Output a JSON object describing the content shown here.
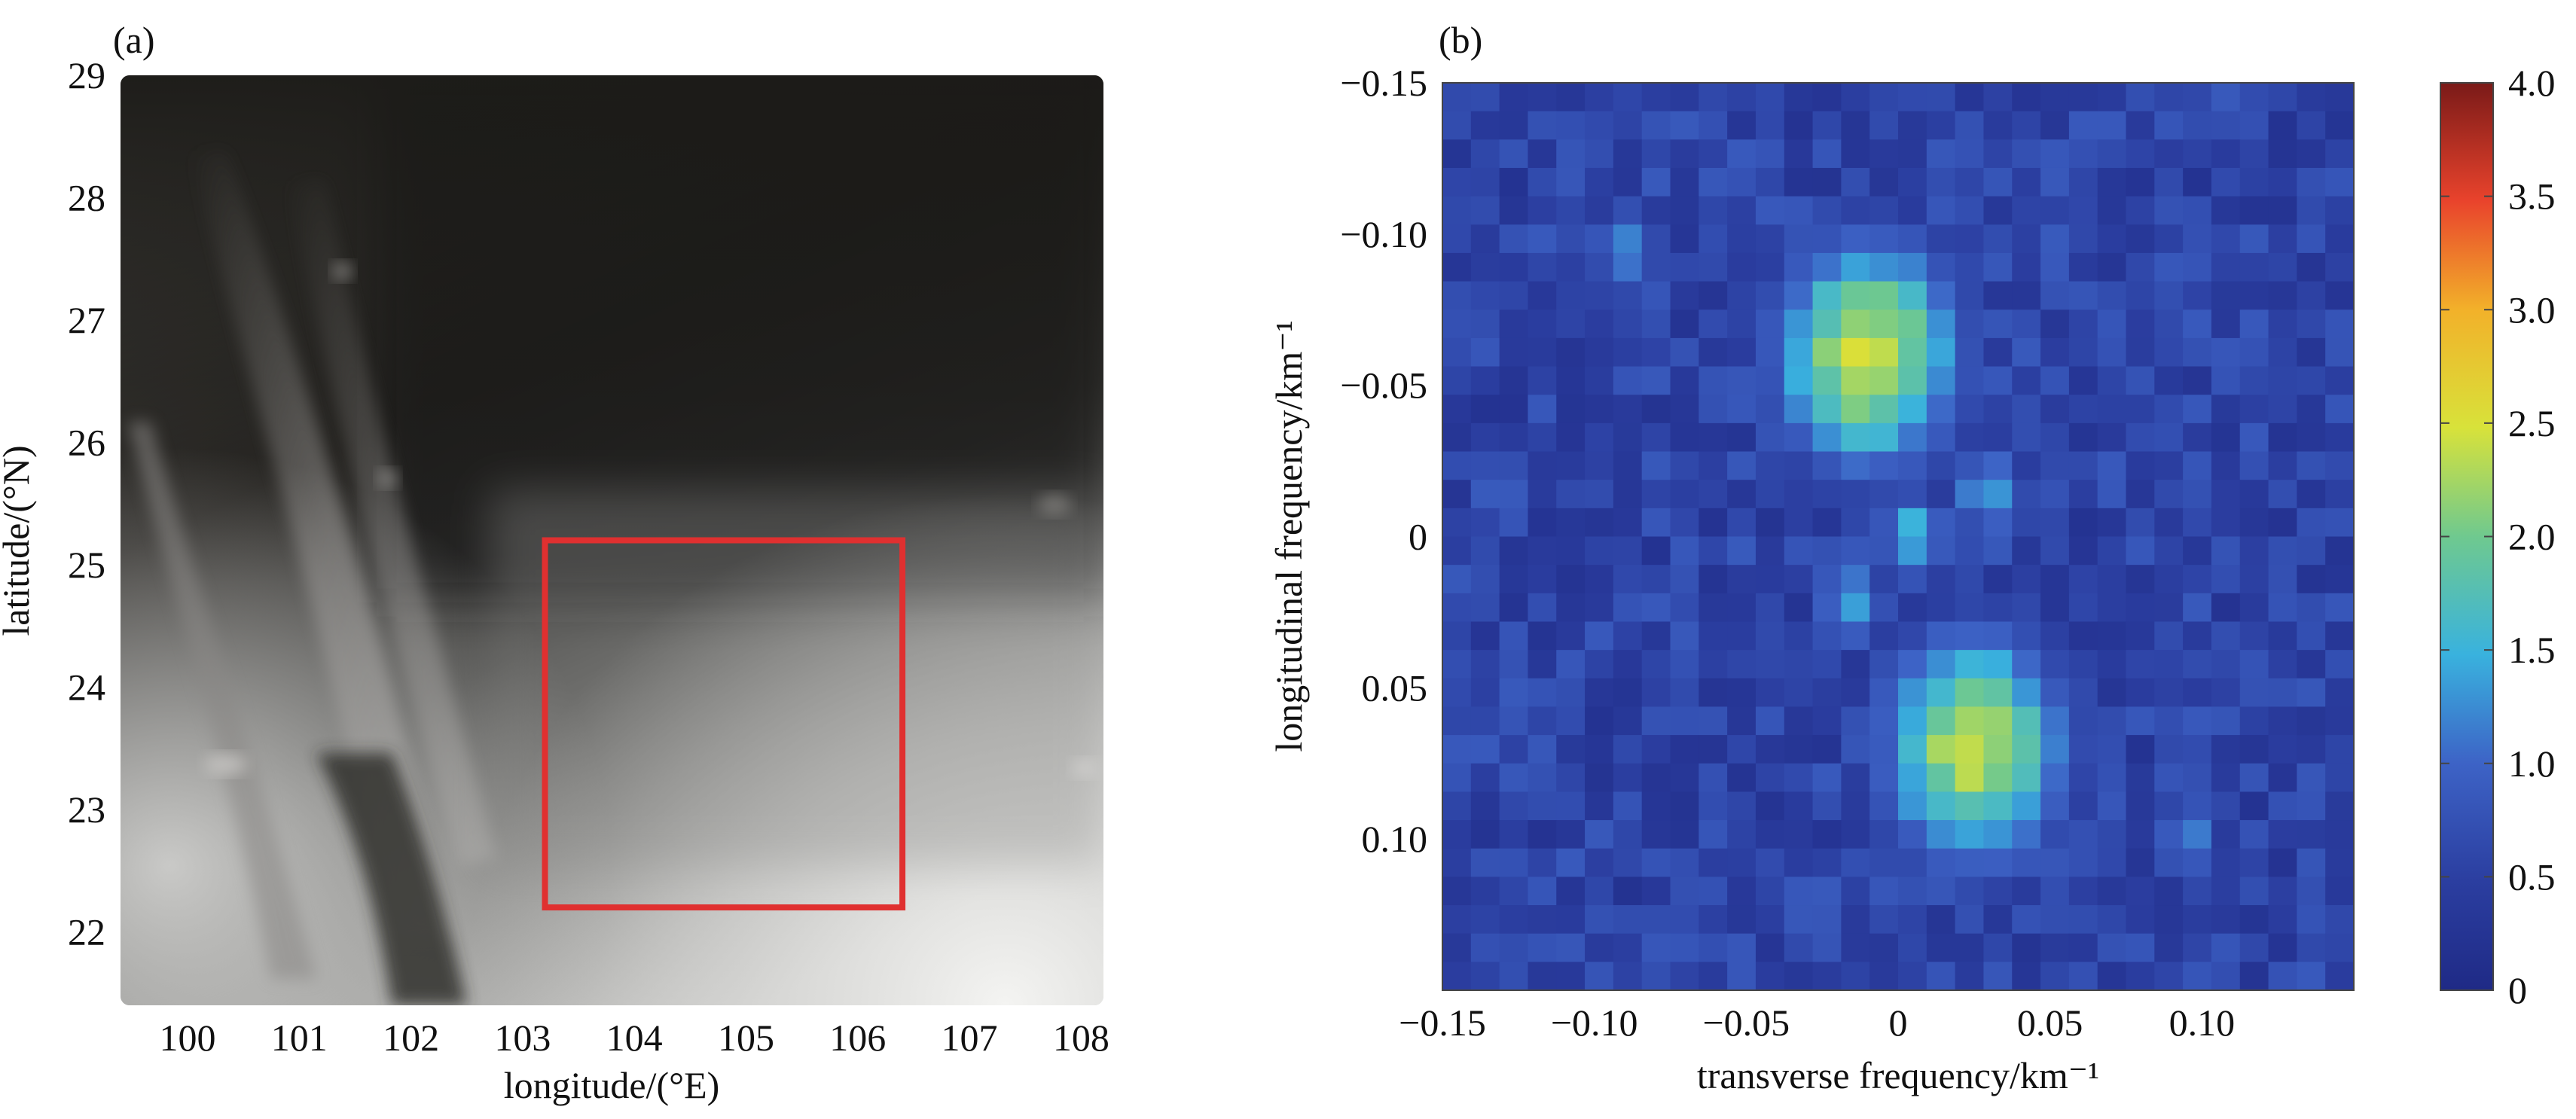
{
  "chart_data": [
    {
      "type": "heatmap",
      "panel_label": "(a)",
      "description_kind": "grayscale gravity/topography field map",
      "xlabel": "longitude/(°E)",
      "ylabel": "latitude/(°N)",
      "xlim": [
        99.4,
        108.2
      ],
      "ylim": [
        21.4,
        29.0
      ],
      "x_ticks": [
        100,
        101,
        102,
        103,
        104,
        105,
        106,
        107,
        108
      ],
      "y_ticks": [
        22,
        23,
        24,
        25,
        26,
        27,
        28,
        29
      ],
      "colormap": "grayscale",
      "highlight_box": {
        "x_range": [
          103.2,
          106.4
        ],
        "y_range": [
          22.2,
          25.2
        ],
        "color": "#e03030"
      }
    },
    {
      "type": "heatmap",
      "panel_label": "(b)",
      "xlabel": "transverse frequency/km⁻¹",
      "ylabel": "longitudinal frequency/km⁻¹",
      "xlim": [
        -0.15,
        0.15
      ],
      "ylim": [
        -0.15,
        0.15
      ],
      "x_ticks": [
        -0.15,
        -0.1,
        -0.05,
        0,
        0.05,
        0.1
      ],
      "x_tick_labels": [
        "−0.15",
        "−0.10",
        "−0.05",
        "0",
        "0.05",
        "0.10"
      ],
      "y_ticks": [
        -0.15,
        -0.1,
        -0.05,
        0,
        0.05,
        0.1
      ],
      "y_tick_labels": [
        "−0.15",
        "−0.10",
        "−0.05",
        "0",
        "0.05",
        "0.10"
      ],
      "y_axis_reversed": true,
      "grid_size": 32,
      "colorbar": {
        "min": 0,
        "max": 4.0,
        "ticks": [
          0,
          0.5,
          1.0,
          1.5,
          2.0,
          2.5,
          3.0,
          3.5,
          4.0
        ],
        "tick_labels": [
          "0",
          "0.5",
          "1.0",
          "1.5",
          "2.0",
          "2.5",
          "3.0",
          "3.5",
          "4.0"
        ],
        "colormap": "jet"
      },
      "peaks": [
        {
          "x": -0.01,
          "y": -0.06,
          "value": 2.5
        },
        {
          "x": 0.025,
          "y": 0.07,
          "value": 2.45
        },
        {
          "x": 0.005,
          "y": 0.0,
          "value": 1.6
        },
        {
          "x": -0.09,
          "y": -0.095,
          "value": 1.3
        },
        {
          "x": 0.095,
          "y": 0.1,
          "value": 1.2
        },
        {
          "x": 0.03,
          "y": -0.015,
          "value": 1.45
        },
        {
          "x": -0.015,
          "y": 0.022,
          "value": 1.5
        }
      ],
      "background_level": 0.6
    }
  ]
}
